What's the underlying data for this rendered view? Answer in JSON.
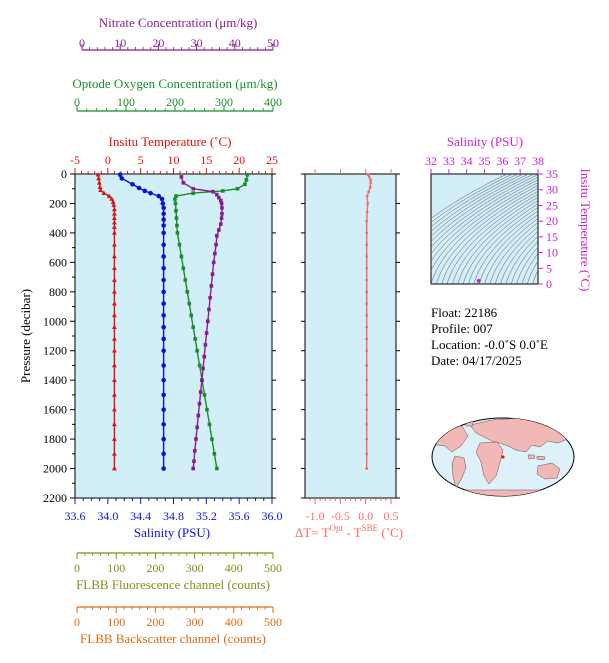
{
  "colors": {
    "nitrate": "#8b1a8b",
    "oxygen": "#1a8c2a",
    "temperature": "#e01010",
    "salinity": "#0a14d0",
    "delta": "#f06c6c",
    "fluorescence": "#8a8a1a",
    "backscatter": "#e06a10",
    "inset": "#cc22cc",
    "plot_bg": "#d2eef7",
    "land": "#f2b8b8",
    "ocean": "#dff1f8"
  },
  "axes": {
    "nitrate": {
      "label": "Nitrate Concentration (μm/kg)",
      "ticks": [
        "0",
        "10",
        "20",
        "30",
        "40",
        "50"
      ]
    },
    "oxygen": {
      "label": "Optode Oxygen Concentration (μm/kg)",
      "ticks": [
        "0",
        "100",
        "200",
        "300",
        "400"
      ]
    },
    "temperature": {
      "label": "Insitu Temperature (˚C)",
      "ticks": [
        "-5",
        "0",
        "5",
        "10",
        "15",
        "20",
        "25"
      ]
    },
    "pressure": {
      "label": "Pressure (decibar)",
      "ticks": [
        "0",
        "200",
        "400",
        "600",
        "800",
        "1000",
        "1200",
        "1400",
        "1600",
        "1800",
        "2000",
        "2200"
      ]
    },
    "salinity": {
      "label": "Salinity (PSU)",
      "ticks": [
        "33.6",
        "34.0",
        "34.4",
        "34.8",
        "35.2",
        "35.6",
        "36.0"
      ]
    },
    "delta": {
      "label_parts": [
        "ΔT= T",
        "Opt",
        " - T",
        "SBE",
        " (˚C)"
      ],
      "ticks": [
        "-1.0",
        "-0.5",
        "0.0",
        "0.5"
      ]
    },
    "fluorescence": {
      "label": "FLBB Fluorescence channel (counts)",
      "ticks": [
        "0",
        "100",
        "200",
        "300",
        "400",
        "500"
      ]
    },
    "backscatter": {
      "label": "FLBB Backscatter channel (counts)",
      "ticks": [
        "0",
        "100",
        "200",
        "300",
        "400",
        "500"
      ]
    },
    "inset_salinity": {
      "label": "Salinity (PSU)",
      "ticks": [
        "32",
        "33",
        "34",
        "35",
        "36",
        "37",
        "38"
      ]
    },
    "inset_temperature": {
      "label": "Insitu Temperature (˚C)",
      "ticks": [
        "0",
        "5",
        "10",
        "15",
        "20",
        "25",
        "30",
        "35"
      ]
    }
  },
  "float_info": {
    "float": "Float:  22186",
    "profile": "Profile:  007",
    "location": "Location:  -0.0˚S   0.0˚E",
    "date": "Date:  04/17/2025"
  },
  "chart_data": [
    {
      "type": "line",
      "series": [
        {
          "name": "Temperature",
          "x_unit": "˚C",
          "y_unit": "decibar",
          "points": [
            [
              -1.5,
              5
            ],
            [
              -1.4,
              30
            ],
            [
              -1.3,
              60
            ],
            [
              -1.2,
              90
            ],
            [
              -1.1,
              110
            ],
            [
              -0.6,
              130
            ],
            [
              0.2,
              150
            ],
            [
              0.6,
              170
            ],
            [
              0.8,
              190
            ],
            [
              0.9,
              210
            ],
            [
              1.0,
              240
            ],
            [
              1.0,
              270
            ],
            [
              1.0,
              300
            ],
            [
              1.0,
              330
            ],
            [
              1.0,
              360
            ],
            [
              1.0,
              400
            ],
            [
              1.0,
              480
            ],
            [
              1.0,
              560
            ],
            [
              1.0,
              640
            ],
            [
              1.0,
              720
            ],
            [
              1.0,
              800
            ],
            [
              1.0,
              880
            ],
            [
              1.0,
              960
            ],
            [
              1.0,
              1040
            ],
            [
              1.0,
              1120
            ],
            [
              1.0,
              1200
            ],
            [
              1.0,
              1300
            ],
            [
              1.0,
              1400
            ],
            [
              1.0,
              1500
            ],
            [
              1.0,
              1600
            ],
            [
              1.0,
              1700
            ],
            [
              1.0,
              1800
            ],
            [
              1.0,
              1900
            ],
            [
              1.0,
              2000
            ]
          ]
        },
        {
          "name": "Salinity",
          "x_unit": "PSU",
          "y_unit": "decibar",
          "points": [
            [
              34.15,
              5
            ],
            [
              34.17,
              30
            ],
            [
              34.3,
              70
            ],
            [
              34.38,
              95
            ],
            [
              34.45,
              115
            ],
            [
              34.52,
              130
            ],
            [
              34.62,
              150
            ],
            [
              34.66,
              170
            ],
            [
              34.67,
              200
            ],
            [
              34.68,
              230
            ],
            [
              34.68,
              270
            ],
            [
              34.68,
              310
            ],
            [
              34.68,
              350
            ],
            [
              34.68,
              400
            ],
            [
              34.68,
              480
            ],
            [
              34.68,
              560
            ],
            [
              34.68,
              640
            ],
            [
              34.68,
              720
            ],
            [
              34.68,
              800
            ],
            [
              34.68,
              880
            ],
            [
              34.68,
              960
            ],
            [
              34.68,
              1040
            ],
            [
              34.68,
              1120
            ],
            [
              34.68,
              1200
            ],
            [
              34.68,
              1300
            ],
            [
              34.68,
              1400
            ],
            [
              34.68,
              1500
            ],
            [
              34.68,
              1600
            ],
            [
              34.68,
              1700
            ],
            [
              34.68,
              1800
            ],
            [
              34.68,
              1900
            ],
            [
              34.68,
              2000
            ]
          ]
        },
        {
          "name": "Oxygen",
          "x_unit": "μm/kg",
          "y_unit": "decibar",
          "points": [
            [
              350,
              5
            ],
            [
              348,
              40
            ],
            [
              345,
              70
            ],
            [
              330,
              100
            ],
            [
              300,
              115
            ],
            [
              240,
              130
            ],
            [
              205,
              150
            ],
            [
              203,
              170
            ],
            [
              204,
              200
            ],
            [
              205,
              250
            ],
            [
              206,
              300
            ],
            [
              207,
              350
            ],
            [
              208,
              400
            ],
            [
              212,
              480
            ],
            [
              216,
              560
            ],
            [
              220,
              640
            ],
            [
              224,
              720
            ],
            [
              228,
              800
            ],
            [
              232,
              880
            ],
            [
              236,
              960
            ],
            [
              240,
              1040
            ],
            [
              244,
              1120
            ],
            [
              248,
              1200
            ],
            [
              253,
              1300
            ],
            [
              258,
              1400
            ],
            [
              263,
              1500
            ],
            [
              268,
              1600
            ],
            [
              273,
              1700
            ],
            [
              278,
              1800
            ],
            [
              283,
              1900
            ],
            [
              288,
              2000
            ]
          ]
        },
        {
          "name": "Nitrate",
          "x_unit": "μm/kg",
          "y_unit": "decibar",
          "points": [
            [
              27,
              20
            ],
            [
              27.5,
              60
            ],
            [
              30,
              100
            ],
            [
              35,
              120
            ],
            [
              36,
              140
            ],
            [
              36.5,
              160
            ],
            [
              37,
              180
            ],
            [
              37.2,
              200
            ],
            [
              37.3,
              230
            ],
            [
              37.3,
              270
            ],
            [
              37.2,
              300
            ],
            [
              37,
              340
            ],
            [
              36.5,
              380
            ],
            [
              36,
              420
            ],
            [
              35.8,
              480
            ],
            [
              35.5,
              540
            ],
            [
              35.2,
              600
            ],
            [
              34.9,
              680
            ],
            [
              34.6,
              760
            ],
            [
              34.3,
              840
            ],
            [
              34,
              920
            ],
            [
              33.7,
              1000
            ],
            [
              33.4,
              1080
            ],
            [
              33.1,
              1160
            ],
            [
              32.8,
              1240
            ],
            [
              32.5,
              1320
            ],
            [
              32.2,
              1400
            ],
            [
              31.9,
              1480
            ],
            [
              31.6,
              1560
            ],
            [
              31.3,
              1640
            ],
            [
              31,
              1720
            ],
            [
              30.7,
              1800
            ],
            [
              30.4,
              1880
            ],
            [
              30.2,
              1950
            ],
            [
              30,
              2000
            ]
          ]
        }
      ],
      "ylim": [
        2200,
        0
      ],
      "xlim_temperature": [
        -5,
        25
      ],
      "xlim_salinity": [
        33.6,
        36.0
      ],
      "xlim_oxygen": [
        0,
        400
      ],
      "xlim_nitrate": [
        0,
        50
      ],
      "grid": false
    },
    {
      "type": "line",
      "series": [
        {
          "name": "ΔT",
          "x_unit": "˚C",
          "y_unit": "decibar",
          "points": [
            [
              0.05,
              5
            ],
            [
              0.07,
              20
            ],
            [
              0.1,
              40
            ],
            [
              0.1,
              60
            ],
            [
              0.09,
              90
            ],
            [
              0.06,
              120
            ],
            [
              0.03,
              150
            ],
            [
              0.04,
              200
            ],
            [
              0.03,
              260
            ],
            [
              0.02,
              320
            ],
            [
              0.02,
              400
            ],
            [
              0.02,
              480
            ],
            [
              0.02,
              560
            ],
            [
              0.02,
              640
            ],
            [
              0.02,
              720
            ],
            [
              0.02,
              800
            ],
            [
              0.02,
              880
            ],
            [
              0.02,
              960
            ],
            [
              0.02,
              1040
            ],
            [
              0.02,
              1120
            ],
            [
              0.02,
              1200
            ],
            [
              0.02,
              1300
            ],
            [
              0.02,
              1400
            ],
            [
              0.02,
              1500
            ],
            [
              0.02,
              1600
            ],
            [
              0.02,
              1700
            ],
            [
              0.02,
              1800
            ],
            [
              0.02,
              1900
            ],
            [
              0.02,
              2000
            ]
          ]
        }
      ],
      "xlim": [
        -1.2,
        0.6
      ],
      "ylim": [
        2200,
        0
      ]
    },
    {
      "type": "scatter",
      "xlim": [
        32,
        38
      ],
      "ylim": [
        0,
        35
      ],
      "series": [
        {
          "name": "T-S",
          "points": [
            [
              34.68,
              1.0
            ]
          ]
        }
      ]
    }
  ]
}
